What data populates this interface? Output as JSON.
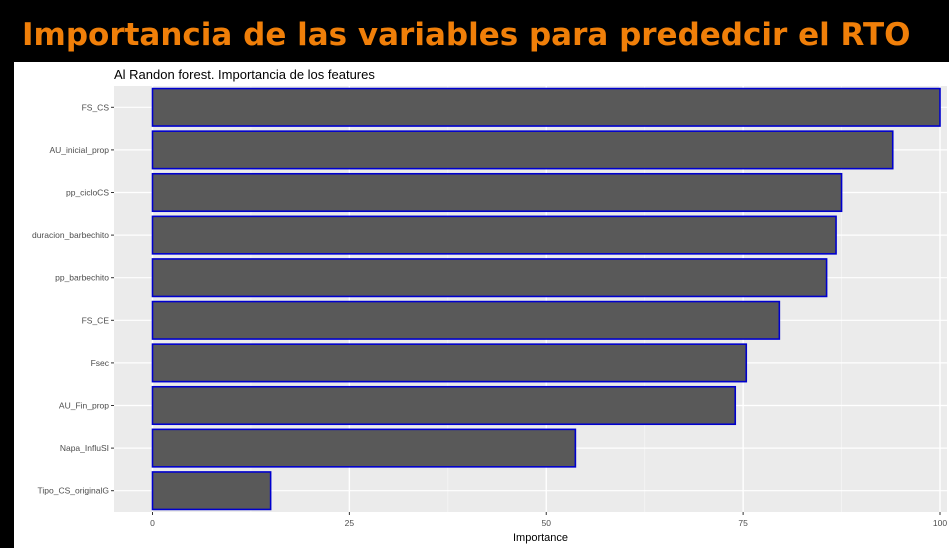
{
  "slide": {
    "title": "Importancia de las variables para prededcir el RTO"
  },
  "chart_data": {
    "type": "bar",
    "orientation": "horizontal",
    "title": "Al Randon forest. Importancia de los features",
    "xlabel": "Importance",
    "ylabel": "",
    "categories": [
      "FS_CS",
      "AU_inicial_prop",
      "pp_cicloCS",
      "duracion_barbechito",
      "pp_barbechito",
      "FS_CE",
      "Fsec",
      "AU_Fin_prop",
      "Napa_InfluSI",
      "Tipo_CS_originalG"
    ],
    "values": [
      100,
      94,
      87.5,
      86.8,
      85.6,
      79.6,
      75.4,
      74,
      53.7,
      15
    ],
    "xlim": [
      0,
      100
    ],
    "xticks": [
      "0",
      "25",
      "50",
      "75",
      "100"
    ],
    "grid": true,
    "colors": {
      "panel": "#ebebeb",
      "grid_major": "#ffffff",
      "bar_fill": "#595959",
      "bar_stroke": "#0000cd",
      "axis_text": "#4d4d4d"
    }
  }
}
